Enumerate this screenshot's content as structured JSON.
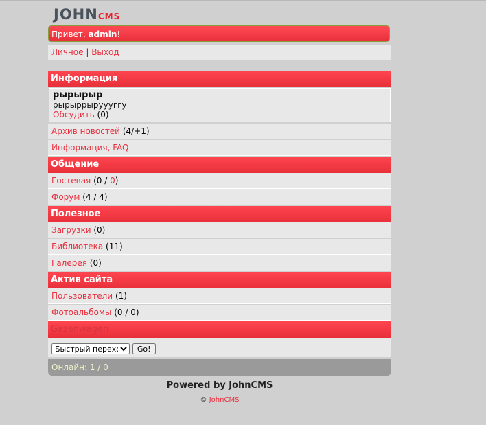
{
  "logo": {
    "text_main": "JOHN",
    "text_sub": "CMS"
  },
  "greeting": {
    "prefix": "Привет, ",
    "user": "admin",
    "suffix": "!"
  },
  "user_links": [
    {
      "label": "Личное"
    },
    {
      "label": "Выход"
    }
  ],
  "sections": {
    "info": {
      "title": "Информация",
      "news_title": "рырырыр",
      "news_text": "рырыррыруууггу",
      "discuss": "Обсудить",
      "discuss_count": "(0)",
      "items": [
        {
          "label": "Архив новостей",
          "count": "(4/+1)"
        },
        {
          "label": "Информация, FAQ",
          "count": ""
        }
      ]
    },
    "comm": {
      "title": "Общение",
      "guest": "Гостевая",
      "guest_a": "(0 / ",
      "guest_b": "0",
      "guest_c": ")",
      "forum": "Форум",
      "forum_count": "(4 / 4)"
    },
    "useful": {
      "title": "Полезное",
      "items": [
        {
          "label": "Загрузки",
          "count": "(0)"
        },
        {
          "label": "Библиотека",
          "count": "(11)"
        },
        {
          "label": "Галерея",
          "count": "(0)"
        }
      ]
    },
    "active": {
      "title": "Актив сайта",
      "items": [
        {
          "label": "Пользователи",
          "count": "(1)"
        },
        {
          "label": "Фотоальбомы",
          "count": "(0 / 0)"
        }
      ]
    },
    "extra": {
      "title": "Gazenwagen"
    }
  },
  "quick": {
    "select": "Быстрый переход",
    "go": "Go!"
  },
  "online": {
    "label": "Онлайн: ",
    "value": "1 / 0"
  },
  "footer": {
    "powered": "Powered by JohnCMS",
    "copy": "© ",
    "copy_link": "JohnCMS"
  },
  "colors": {
    "accent": "#e8303a",
    "link": "#e8303f"
  }
}
